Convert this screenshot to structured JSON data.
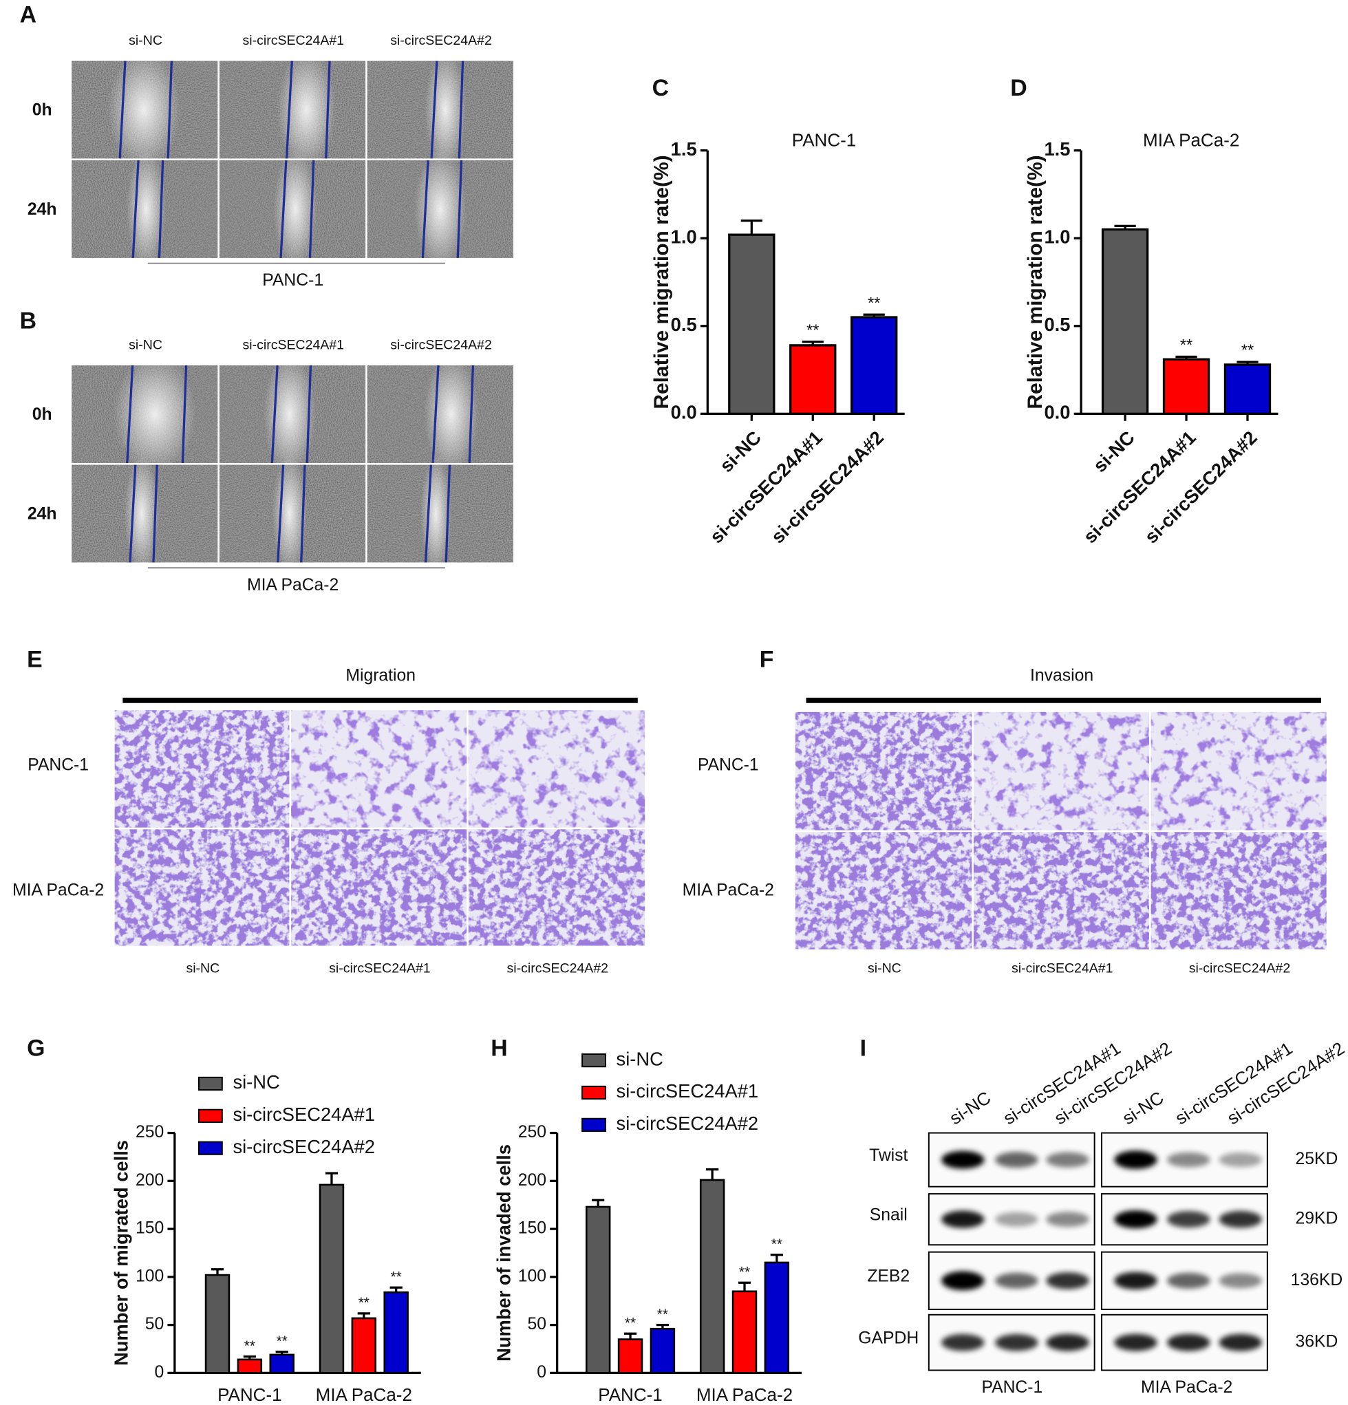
{
  "panel_labels": [
    "A",
    "B",
    "C",
    "D",
    "E",
    "F",
    "G",
    "H",
    "I"
  ],
  "panel_a": {
    "conditions": [
      "si-NC",
      "si-circSEC24A#1",
      "si-circSEC24A#2"
    ],
    "times": [
      "0h",
      "24h"
    ],
    "cell_line": "PANC-1"
  },
  "panel_b": {
    "conditions": [
      "si-NC",
      "si-circSEC24A#1",
      "si-circSEC24A#2"
    ],
    "times": [
      "0h",
      "24h"
    ],
    "cell_line": "MIA PaCa-2"
  },
  "chart_data": [
    {
      "type": "bar",
      "title": "PANC-1",
      "y_label": "Relative migration rate(%)",
      "categories": [
        "si-NC",
        "si-circSEC24A#1",
        "si-circSEC24A#2"
      ],
      "values": [
        1.02,
        0.39,
        0.55
      ],
      "errors": [
        0.08,
        0.02,
        0.015
      ],
      "significance": [
        null,
        "**",
        "**"
      ],
      "colors": [
        "#595959",
        "#ff0000",
        "#0000cc"
      ],
      "ylim": [
        0,
        1.5
      ],
      "yticks": [
        {
          "value": 0,
          "label": "0.0"
        },
        0.5,
        {
          "value": 1,
          "label": "1.0"
        },
        1.5
      ]
    },
    {
      "type": "bar",
      "title": "MIA PaCa-2",
      "y_label": "Relative migration rate(%)",
      "categories": [
        "si-NC",
        "si-circSEC24A#1",
        "si-circSEC24A#2"
      ],
      "values": [
        1.05,
        0.31,
        0.28
      ],
      "errors": [
        0.02,
        0.015,
        0.015
      ],
      "significance": [
        null,
        "**",
        "**"
      ],
      "colors": [
        "#595959",
        "#ff0000",
        "#0000cc"
      ],
      "ylim": [
        0,
        1.5
      ],
      "yticks": [
        {
          "value": 0,
          "label": "0.0"
        },
        0.5,
        {
          "value": 1,
          "label": "1.0"
        },
        1.5
      ]
    },
    {
      "type": "grouped_bar",
      "y_label": "Number of migrated cells",
      "legend": "upper left",
      "categories": [
        "PANC-1",
        "MIA PaCa-2"
      ],
      "series": [
        {
          "name": "si-NC",
          "color": "#595959",
          "values": [
            102,
            196
          ],
          "errors": [
            6,
            12
          ]
        },
        {
          "name": "si-circSEC24A#1",
          "color": "#ff0000",
          "values": [
            14,
            57
          ],
          "errors": [
            3,
            5
          ],
          "significance": [
            "**",
            "**"
          ]
        },
        {
          "name": "si-circSEC24A#2",
          "color": "#0000cc",
          "values": [
            19,
            84
          ],
          "errors": [
            3,
            5
          ],
          "significance": [
            "**",
            "**"
          ]
        }
      ],
      "ylim": [
        0,
        250
      ],
      "yticks": [
        0,
        50,
        100,
        150,
        200,
        250
      ]
    },
    {
      "type": "grouped_bar",
      "y_label": "Number of invaded cells",
      "legend": "upper left",
      "categories": [
        "PANC-1",
        "MIA PaCa-2"
      ],
      "series": [
        {
          "name": "si-NC",
          "color": "#595959",
          "values": [
            173,
            201
          ],
          "errors": [
            7,
            11
          ]
        },
        {
          "name": "si-circSEC24A#1",
          "color": "#ff0000",
          "values": [
            35,
            85
          ],
          "errors": [
            6,
            9
          ],
          "significance": [
            "**",
            "**"
          ]
        },
        {
          "name": "si-circSEC24A#2",
          "color": "#0000cc",
          "values": [
            46,
            115
          ],
          "errors": [
            4,
            8
          ],
          "significance": [
            "**",
            "**"
          ]
        }
      ],
      "ylim": [
        0,
        250
      ],
      "yticks": [
        0,
        50,
        100,
        150,
        200,
        250
      ]
    }
  ],
  "panel_e": {
    "title": "Migration",
    "rows": [
      "PANC-1",
      "MIA PaCa-2"
    ],
    "columns": [
      "si-NC",
      "si-circSEC24A#1",
      "si-circSEC24A#2"
    ]
  },
  "panel_f": {
    "title": "Invasion",
    "rows": [
      "PANC-1",
      "MIA PaCa-2"
    ],
    "columns": [
      "si-NC",
      "si-circSEC24A#1",
      "si-circSEC24A#2"
    ]
  },
  "panel_i": {
    "lanes": [
      "si-NC",
      "si-circSEC24A#1",
      "si-circSEC24A#2",
      "si-NC",
      "si-circSEC24A#1",
      "si-circSEC24A#2"
    ],
    "proteins": [
      "Twist",
      "Snail",
      "ZEB2",
      "GAPDH"
    ],
    "sizes": [
      "25KD",
      "29KD",
      "136KD",
      "36KD"
    ],
    "cell_lines": [
      "PANC-1",
      "MIA PaCa-2"
    ]
  }
}
